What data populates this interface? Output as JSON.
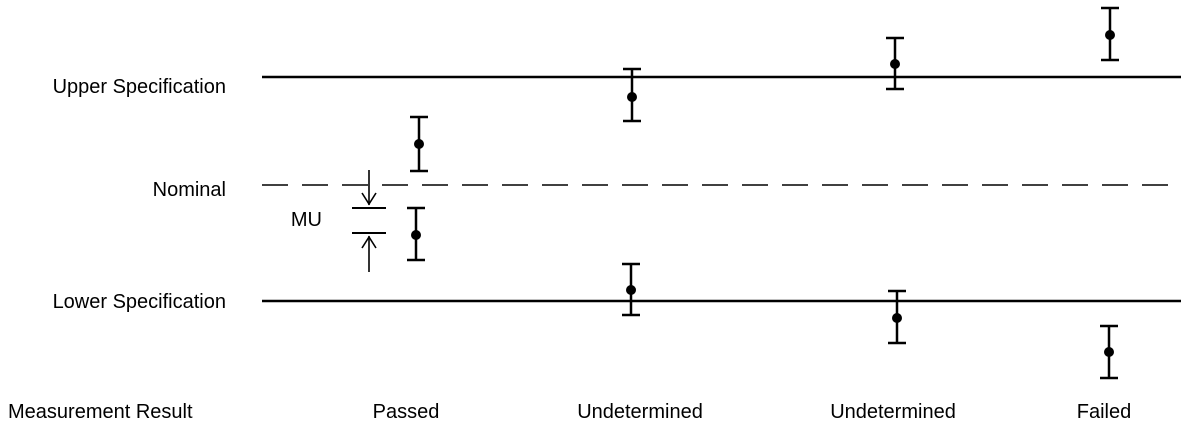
{
  "labels": {
    "upper_spec": "Upper Specification",
    "nominal": "Nominal",
    "lower_spec": "Lower Specification",
    "mu": "MU",
    "row_title": "Measurement Result"
  },
  "results": [
    {
      "label": "Passed"
    },
    {
      "label": "Undetermined"
    },
    {
      "label": "Undetermined"
    },
    {
      "label": "Failed"
    }
  ],
  "colors": {
    "ink": "#000000",
    "background": "#ffffff"
  }
}
